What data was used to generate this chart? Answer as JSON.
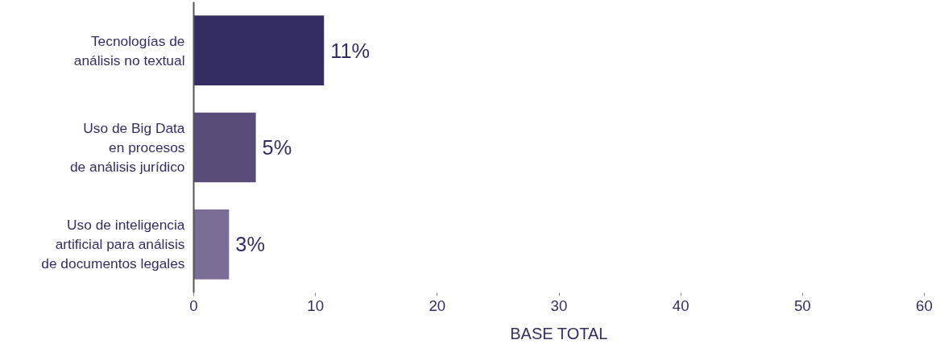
{
  "chart_data": {
    "type": "bar",
    "orientation": "horizontal",
    "xlabel": "BASE TOTAL",
    "categories": [
      "Tecnologías de\nanálisis no textual",
      "Uso de Big Data\nen procesos\nde análisis jurídico",
      "Uso de inteligencia\nartificial para análisis\nde documentos legales"
    ],
    "values": [
      10.7,
      5.1,
      2.9
    ],
    "colors": [
      "#332d64",
      "#584b78",
      "#7a6d96"
    ],
    "value_labels": [
      "11%",
      "5%",
      "3%"
    ],
    "xlim": [
      0,
      60
    ],
    "xticks": [
      0,
      10,
      20,
      30,
      40,
      50,
      60
    ],
    "grid": false
  }
}
